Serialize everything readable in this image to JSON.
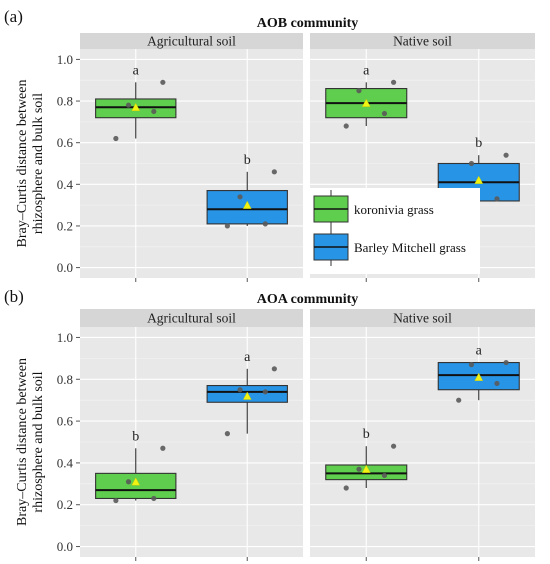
{
  "chart_data": [
    {
      "type": "box",
      "panel_label": "(a)",
      "title": "AOB community",
      "ylabel": [
        "Bray–Curtis distance between",
        "rhizosphere and bulk soil"
      ],
      "ylim": [
        -0.05,
        1.05
      ],
      "yticks": [
        "0.0",
        "0.2",
        "0.4",
        "0.6",
        "0.8",
        "1.0"
      ],
      "facets": [
        {
          "name": "Agricultural soil",
          "boxes": [
            {
              "series": "koronivia grass",
              "min": 0.62,
              "q1": 0.72,
              "median": 0.77,
              "q3": 0.81,
              "max": 0.89,
              "mean": 0.77,
              "letter": "a",
              "points": [
                0.62,
                0.75,
                0.78,
                0.89
              ]
            },
            {
              "series": "Barley Mitchell grass",
              "min": 0.2,
              "q1": 0.21,
              "median": 0.28,
              "q3": 0.37,
              "max": 0.46,
              "mean": 0.3,
              "letter": "b",
              "points": [
                0.2,
                0.21,
                0.34,
                0.46
              ]
            }
          ]
        },
        {
          "name": "Native soil",
          "boxes": [
            {
              "series": "koronivia grass",
              "min": 0.68,
              "q1": 0.72,
              "median": 0.79,
              "q3": 0.86,
              "max": 0.89,
              "mean": 0.79,
              "letter": "a",
              "points": [
                0.68,
                0.74,
                0.85,
                0.89
              ]
            },
            {
              "series": "Barley Mitchell grass",
              "min": 0.31,
              "q1": 0.32,
              "median": 0.41,
              "q3": 0.5,
              "max": 0.54,
              "mean": 0.42,
              "letter": "b",
              "points": [
                0.31,
                0.33,
                0.5,
                0.54
              ]
            }
          ]
        }
      ]
    },
    {
      "type": "box",
      "panel_label": "(b)",
      "title": "AOA community",
      "ylabel": [
        "Bray–Curtis distance between",
        "rhizosphere and bulk soil"
      ],
      "ylim": [
        -0.05,
        1.05
      ],
      "yticks": [
        "0.0",
        "0.2",
        "0.4",
        "0.6",
        "0.8",
        "1.0"
      ],
      "facets": [
        {
          "name": "Agricultural soil",
          "boxes": [
            {
              "series": "koronivia grass",
              "min": 0.22,
              "q1": 0.23,
              "median": 0.27,
              "q3": 0.35,
              "max": 0.47,
              "mean": 0.31,
              "letter": "b",
              "points": [
                0.22,
                0.23,
                0.31,
                0.47
              ]
            },
            {
              "series": "Barley Mitchell grass",
              "min": 0.54,
              "q1": 0.69,
              "median": 0.74,
              "q3": 0.77,
              "max": 0.85,
              "mean": 0.72,
              "letter": "a",
              "points": [
                0.54,
                0.74,
                0.75,
                0.85
              ]
            }
          ]
        },
        {
          "name": "Native soil",
          "boxes": [
            {
              "series": "koronivia grass",
              "min": 0.28,
              "q1": 0.32,
              "median": 0.35,
              "q3": 0.39,
              "max": 0.48,
              "mean": 0.37,
              "letter": "b",
              "points": [
                0.28,
                0.34,
                0.37,
                0.48
              ]
            },
            {
              "series": "Barley Mitchell grass",
              "min": 0.7,
              "q1": 0.75,
              "median": 0.82,
              "q3": 0.88,
              "max": 0.88,
              "mean": 0.81,
              "letter": "a",
              "points": [
                0.7,
                0.78,
                0.87,
                0.88
              ]
            }
          ]
        }
      ]
    }
  ],
  "legend": [
    {
      "label": "koronivia grass",
      "color": "#5fcd4d"
    },
    {
      "label": "Barley Mitchell grass",
      "color": "#2894e6"
    }
  ],
  "colors": {
    "koronivia grass": "#5fcd4d",
    "Barley Mitchell grass": "#2894e6",
    "mean_marker": "#f2f213",
    "points": "#5a5a5a"
  }
}
